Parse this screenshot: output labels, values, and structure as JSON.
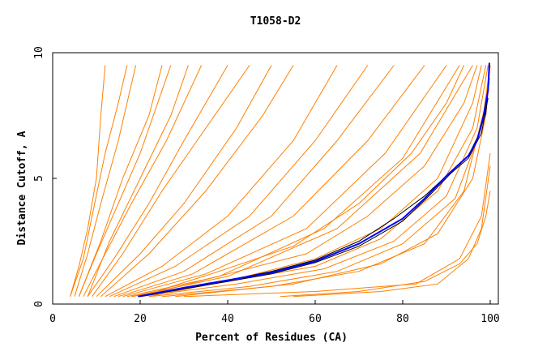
{
  "chart_data": {
    "type": "line",
    "title": "T1058-D2",
    "xlabel": "Percent of Residues (CA)",
    "ylabel": "Distance Cutoff, A",
    "xlim": [
      0,
      100
    ],
    "ylim": [
      0,
      10
    ],
    "xticks": [
      "0",
      "20",
      "40",
      "60",
      "80",
      "100"
    ],
    "yticks": [
      "0",
      "5",
      "10"
    ],
    "grid": false,
    "colors": {
      "models": "#ff8000",
      "highlight_blue": "#0000ff",
      "highlight_black": "#000000"
    },
    "series": [
      {
        "color": "orange",
        "points": [
          [
            4,
            0.3
          ],
          [
            6,
            1.5
          ],
          [
            8,
            3
          ],
          [
            10,
            5
          ],
          [
            11,
            7.5
          ],
          [
            12,
            9.5
          ]
        ]
      },
      {
        "color": "orange",
        "points": [
          [
            4,
            0.3
          ],
          [
            7,
            1.8
          ],
          [
            9,
            3.5
          ],
          [
            12,
            6
          ],
          [
            15,
            8
          ],
          [
            17,
            9.5
          ]
        ]
      },
      {
        "color": "orange",
        "points": [
          [
            5,
            0.3
          ],
          [
            8,
            2
          ],
          [
            11,
            4
          ],
          [
            15,
            6.5
          ],
          [
            19,
            9.5
          ]
        ]
      },
      {
        "color": "orange",
        "points": [
          [
            6,
            0.3
          ],
          [
            10,
            2
          ],
          [
            15,
            4
          ],
          [
            20,
            6
          ],
          [
            27,
            9.5
          ]
        ]
      },
      {
        "color": "orange",
        "points": [
          [
            6,
            0.3
          ],
          [
            11,
            2.5
          ],
          [
            16,
            5
          ],
          [
            22,
            7.5
          ],
          [
            25,
            9.5
          ]
        ]
      },
      {
        "color": "orange",
        "points": [
          [
            7,
            0.3
          ],
          [
            12,
            2
          ],
          [
            18,
            4
          ],
          [
            26,
            6.5
          ],
          [
            34,
            9.5
          ]
        ]
      },
      {
        "color": "orange",
        "points": [
          [
            8,
            0.3
          ],
          [
            14,
            1.8
          ],
          [
            22,
            4
          ],
          [
            30,
            6.5
          ],
          [
            40,
            9.5
          ]
        ]
      },
      {
        "color": "orange",
        "points": [
          [
            8,
            0.3
          ],
          [
            13,
            2.5
          ],
          [
            20,
            5
          ],
          [
            27,
            7.5
          ],
          [
            31,
            9.5
          ]
        ]
      },
      {
        "color": "orange",
        "points": [
          [
            9,
            0.3
          ],
          [
            16,
            2
          ],
          [
            25,
            4.5
          ],
          [
            35,
            7
          ],
          [
            45,
            9.5
          ]
        ]
      },
      {
        "color": "orange",
        "points": [
          [
            10,
            0.3
          ],
          [
            20,
            2
          ],
          [
            30,
            4
          ],
          [
            42,
            7
          ],
          [
            50,
            9.5
          ]
        ]
      },
      {
        "color": "orange",
        "points": [
          [
            11,
            0.3
          ],
          [
            22,
            2
          ],
          [
            35,
            4.5
          ],
          [
            48,
            7.5
          ],
          [
            55,
            9.5
          ]
        ]
      },
      {
        "color": "orange",
        "points": [
          [
            12,
            0.3
          ],
          [
            25,
            1.5
          ],
          [
            40,
            3.5
          ],
          [
            55,
            6.5
          ],
          [
            65,
            9.5
          ]
        ]
      },
      {
        "color": "orange",
        "points": [
          [
            13,
            0.3
          ],
          [
            28,
            1.5
          ],
          [
            45,
            3.5
          ],
          [
            60,
            6.5
          ],
          [
            72,
            9.5
          ]
        ]
      },
      {
        "color": "orange",
        "points": [
          [
            14,
            0.3
          ],
          [
            30,
            1.3
          ],
          [
            50,
            3.5
          ],
          [
            65,
            6.5
          ],
          [
            78,
            9.5
          ]
        ]
      },
      {
        "color": "orange",
        "points": [
          [
            15,
            0.3
          ],
          [
            32,
            1.2
          ],
          [
            55,
            3.5
          ],
          [
            72,
            6.5
          ],
          [
            85,
            9.5
          ]
        ]
      },
      {
        "color": "orange",
        "points": [
          [
            16,
            0.3
          ],
          [
            35,
            1.2
          ],
          [
            58,
            3
          ],
          [
            76,
            6
          ],
          [
            90,
            9.5
          ]
        ]
      },
      {
        "color": "orange",
        "points": [
          [
            17,
            0.3
          ],
          [
            38,
            1.1
          ],
          [
            62,
            3
          ],
          [
            80,
            5.8
          ],
          [
            93,
            9.5
          ]
        ]
      },
      {
        "color": "orange",
        "points": [
          [
            18,
            0.3
          ],
          [
            40,
            1.1
          ],
          [
            65,
            3
          ],
          [
            84,
            6
          ],
          [
            96,
            9.5
          ]
        ]
      },
      {
        "color": "orange",
        "points": [
          [
            18,
            0.3
          ],
          [
            40,
            0.9
          ],
          [
            60,
            1.5
          ],
          [
            75,
            2.6
          ],
          [
            88,
            4.5
          ],
          [
            96,
            7
          ],
          [
            99,
            9.5
          ]
        ]
      },
      {
        "color": "orange",
        "points": [
          [
            20,
            0.3
          ],
          [
            42,
            0.8
          ],
          [
            62,
            1.4
          ],
          [
            78,
            2.5
          ],
          [
            90,
            4.3
          ],
          [
            97,
            7
          ],
          [
            99.5,
            9.5
          ]
        ]
      },
      {
        "color": "orange",
        "points": [
          [
            22,
            0.3
          ],
          [
            45,
            0.7
          ],
          [
            65,
            1.3
          ],
          [
            80,
            2.4
          ],
          [
            92,
            4.2
          ],
          [
            98,
            7
          ],
          [
            100,
            9.5
          ]
        ]
      },
      {
        "color": "orange",
        "points": [
          [
            25,
            0.3
          ],
          [
            50,
            0.7
          ],
          [
            70,
            1.3
          ],
          [
            85,
            2.4
          ],
          [
            94,
            4.5
          ],
          [
            99,
            8
          ],
          [
            100,
            9.5
          ]
        ]
      },
      {
        "color": "orange",
        "points": [
          [
            20,
            0.3
          ],
          [
            40,
            1.2
          ],
          [
            58,
            2
          ],
          [
            72,
            3.5
          ],
          [
            85,
            5.5
          ],
          [
            94,
            8
          ],
          [
            97,
            9.5
          ]
        ]
      },
      {
        "color": "orange",
        "points": [
          [
            20,
            0.3
          ],
          [
            38,
            1.3
          ],
          [
            55,
            2.3
          ],
          [
            70,
            4
          ],
          [
            82,
            6
          ],
          [
            90,
            8
          ],
          [
            94,
            9.5
          ]
        ]
      },
      {
        "color": "orange",
        "points": [
          [
            22,
            0.3
          ],
          [
            42,
            1.0
          ],
          [
            60,
            1.8
          ],
          [
            75,
            3
          ],
          [
            88,
            5
          ],
          [
            96,
            8
          ],
          [
            98,
            9.5
          ]
        ]
      },
      {
        "color": "orange",
        "points": [
          [
            28,
            0.3
          ],
          [
            55,
            0.8
          ],
          [
            75,
            1.6
          ],
          [
            88,
            2.8
          ],
          [
            96,
            5
          ],
          [
            99,
            7.5
          ],
          [
            100,
            9.5
          ]
        ]
      },
      {
        "color": "orange",
        "points": [
          [
            52,
            0.3
          ],
          [
            70,
            0.5
          ],
          [
            85,
            0.9
          ],
          [
            93,
            1.6
          ],
          [
            97,
            2.4
          ],
          [
            99,
            3.5
          ],
          [
            100,
            4.5
          ]
        ]
      },
      {
        "color": "orange",
        "points": [
          [
            55,
            0.3
          ],
          [
            75,
            0.5
          ],
          [
            88,
            0.8
          ],
          [
            95,
            1.8
          ],
          [
            98,
            3
          ],
          [
            100,
            5.5
          ]
        ]
      },
      {
        "color": "orange",
        "points": [
          [
            30,
            0.3
          ],
          [
            60,
            0.5
          ],
          [
            83,
            0.8
          ],
          [
            93,
            1.8
          ],
          [
            98,
            3.5
          ],
          [
            100,
            6
          ]
        ]
      },
      {
        "color": "black",
        "points": [
          [
            20,
            0.3
          ],
          [
            30,
            0.65
          ],
          [
            40,
            0.95
          ],
          [
            50,
            1.3
          ],
          [
            60,
            1.75
          ],
          [
            70,
            2.5
          ],
          [
            78,
            3.4
          ],
          [
            85,
            4.3
          ],
          [
            90,
            5.1
          ],
          [
            95,
            5.9
          ],
          [
            97,
            6.6
          ],
          [
            99,
            7.6
          ],
          [
            99.8,
            9.0
          ]
        ]
      },
      {
        "color": "black",
        "points": [
          [
            20,
            0.3
          ],
          [
            30,
            0.6
          ],
          [
            40,
            0.9
          ],
          [
            50,
            1.2
          ],
          [
            60,
            1.65
          ],
          [
            70,
            2.3
          ],
          [
            80,
            3.3
          ],
          [
            86,
            4.3
          ],
          [
            91,
            5.2
          ],
          [
            95,
            5.8
          ],
          [
            98,
            6.8
          ],
          [
            99.5,
            8.2
          ]
        ]
      },
      {
        "color": "blue",
        "points": [
          [
            19.5,
            0.3
          ],
          [
            30,
            0.65
          ],
          [
            40,
            0.95
          ],
          [
            50,
            1.25
          ],
          [
            60,
            1.7
          ],
          [
            70,
            2.4
          ],
          [
            80,
            3.4
          ],
          [
            85,
            4.2
          ],
          [
            90,
            5.1
          ],
          [
            95,
            5.9
          ],
          [
            97,
            6.5
          ],
          [
            98.5,
            7.5
          ],
          [
            99.5,
            8.5
          ],
          [
            99.8,
            9.6
          ]
        ]
      }
    ]
  }
}
